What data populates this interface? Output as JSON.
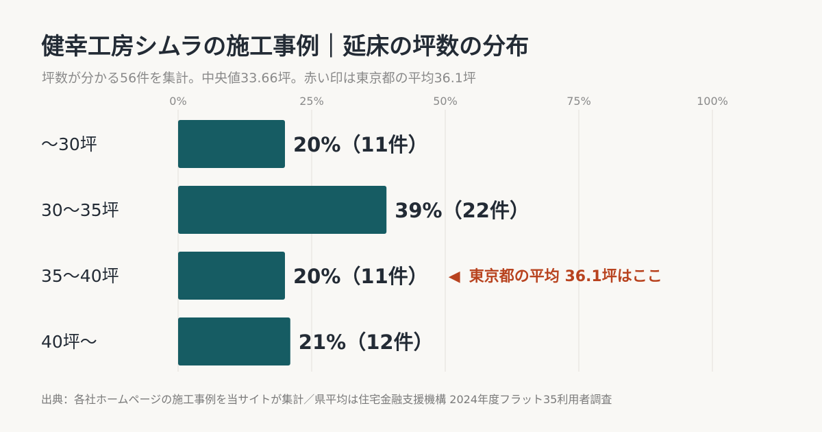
{
  "title": "健幸工房シムラの施工事例｜延床の坪数の分布",
  "subtitle": "坪数が分かる56件を集計。中央値33.66坪。赤い印は東京都の平均36.1坪",
  "source": "出典：各社ホームページの施工事例を当サイトが集計／県平均は住宅金融支援機構 2024年度フラット35利用者調査",
  "colors": {
    "bar": "#165c63",
    "grid": "#e2e0db",
    "tick": "#8a8a8a",
    "category": "#232b35",
    "value_label": "#232b35",
    "marker": "#b8431f"
  },
  "chart_data": {
    "type": "bar",
    "orientation": "horizontal",
    "categories": [
      "〜30坪",
      "30〜35坪",
      "35〜40坪",
      "40坪〜"
    ],
    "values": [
      20,
      39,
      20,
      21
    ],
    "counts": [
      11,
      22,
      11,
      12
    ],
    "value_labels": [
      "20%（11件）",
      "39%（22件）",
      "20%（11件）",
      "21%（12件）"
    ],
    "xlim": [
      0,
      100
    ],
    "xticks": [
      0,
      25,
      50,
      75,
      100
    ],
    "xtick_labels": [
      "0%",
      "25%",
      "50%",
      "75%",
      "100%"
    ],
    "xaxis_position": "top",
    "grid": true,
    "annotation": {
      "category_index": 2,
      "text": "東京都の平均 36.1坪はここ",
      "symbol": "◀"
    }
  }
}
